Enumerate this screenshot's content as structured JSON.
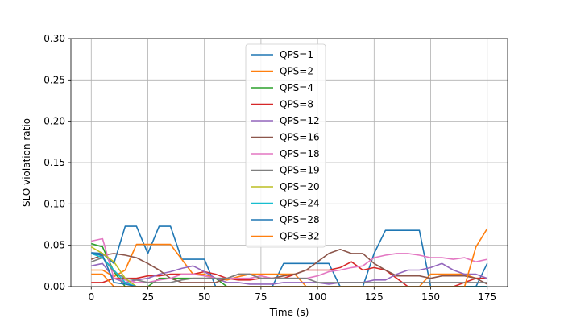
{
  "chart_data": {
    "type": "line",
    "title": "",
    "xlabel": "Time (s)",
    "ylabel": "SLO violation ratio",
    "xlim": [
      -9,
      184
    ],
    "ylim": [
      0,
      0.3
    ],
    "xticks": [
      0,
      25,
      50,
      75,
      100,
      125,
      150,
      175
    ],
    "yticks": [
      0.0,
      0.05,
      0.1,
      0.15,
      0.2,
      0.25,
      0.3
    ],
    "ytick_labels": [
      "0.00",
      "0.05",
      "0.10",
      "0.15",
      "0.20",
      "0.25",
      "0.30"
    ],
    "grid": true,
    "legend_position": "upper-center",
    "series": [
      {
        "name": "QPS=1",
        "color": "#1f77b4",
        "x": [
          0,
          5,
          10,
          15,
          20,
          25,
          30,
          35,
          40,
          45,
          50,
          55,
          60,
          65,
          70,
          75,
          80,
          85,
          90,
          95,
          100,
          105,
          110,
          115,
          120,
          125,
          130,
          135,
          140,
          145,
          150,
          155,
          160,
          165,
          170,
          175
        ],
        "y": [
          0.041,
          0.04,
          0.028,
          0.073,
          0.073,
          0.04,
          0.073,
          0.073,
          0.033,
          0.033,
          0.033,
          0,
          0,
          0,
          0,
          0,
          0,
          0.028,
          0.028,
          0.028,
          0.028,
          0.028,
          0,
          0,
          0,
          0.04,
          0.068,
          0.068,
          0.068,
          0.068,
          0,
          0,
          0,
          0,
          0,
          0.028
        ]
      },
      {
        "name": "QPS=2",
        "color": "#ff7f0e",
        "x": [
          0,
          5,
          10,
          15,
          20,
          25,
          30,
          35,
          40,
          45,
          50,
          55,
          60,
          65,
          70,
          75,
          80,
          85,
          90,
          95,
          100,
          105,
          110,
          115,
          120,
          125,
          130,
          135,
          140,
          145,
          150,
          155,
          160,
          165,
          170,
          175
        ],
        "y": [
          0.02,
          0.02,
          0.012,
          0.02,
          0.051,
          0.051,
          0.051,
          0.051,
          0.033,
          0.015,
          0.015,
          0.01,
          0.008,
          0.012,
          0.015,
          0.015,
          0.015,
          0.015,
          0.015,
          0,
          0,
          0,
          0,
          0,
          0,
          0,
          0,
          0,
          0,
          0,
          0.015,
          0.015,
          0.015,
          0.015,
          0.01,
          0.01
        ]
      },
      {
        "name": "QPS=4",
        "color": "#2ca02c",
        "x": [
          0,
          5,
          10,
          15,
          20,
          25,
          30,
          35,
          40,
          45,
          50,
          55,
          60,
          65,
          70,
          75,
          80,
          85,
          90,
          95,
          100,
          105,
          110,
          115,
          120,
          125,
          130,
          135,
          140,
          145,
          150,
          155,
          160,
          165,
          170,
          175
        ],
        "y": [
          0.052,
          0.048,
          0.018,
          0,
          0,
          0,
          0.01,
          0.01,
          0.01,
          0.01,
          0.01,
          0.01,
          0,
          0,
          0,
          0,
          0,
          0,
          0,
          0,
          0,
          0,
          0,
          0,
          0,
          0,
          0,
          0,
          0,
          0,
          0,
          0,
          0,
          0,
          0,
          0
        ]
      },
      {
        "name": "QPS=8",
        "color": "#d62728",
        "x": [
          0,
          5,
          10,
          15,
          20,
          25,
          30,
          35,
          40,
          45,
          50,
          55,
          60,
          65,
          70,
          75,
          80,
          85,
          90,
          95,
          100,
          105,
          110,
          115,
          120,
          125,
          130,
          135,
          140,
          145,
          150,
          155,
          160,
          165,
          170,
          175
        ],
        "y": [
          0.005,
          0.005,
          0.01,
          0.01,
          0.01,
          0.013,
          0.013,
          0.015,
          0.015,
          0.015,
          0.018,
          0.015,
          0.01,
          0.008,
          0.008,
          0.01,
          0.01,
          0.01,
          0.015,
          0.02,
          0.02,
          0.02,
          0.023,
          0.03,
          0.02,
          0.023,
          0.02,
          0.01,
          0,
          0,
          0,
          0,
          0,
          0.005,
          0.01,
          0.01
        ]
      },
      {
        "name": "QPS=12",
        "color": "#9467bd",
        "x": [
          0,
          5,
          10,
          15,
          20,
          25,
          30,
          35,
          40,
          45,
          50,
          55,
          60,
          65,
          70,
          75,
          80,
          85,
          90,
          95,
          100,
          105,
          110,
          115,
          120,
          125,
          130,
          135,
          140,
          145,
          150,
          155,
          160,
          165,
          170,
          175
        ],
        "y": [
          0.025,
          0.028,
          0.01,
          0.005,
          0.008,
          0.01,
          0.015,
          0.018,
          0.022,
          0.025,
          0.018,
          0.01,
          0.005,
          0.005,
          0.003,
          0.003,
          0.003,
          0.005,
          0.005,
          0.005,
          0.005,
          0.003,
          0.005,
          0.005,
          0.005,
          0.008,
          0.008,
          0.015,
          0.02,
          0.02,
          0.023,
          0.028,
          0.02,
          0.015,
          0.015,
          0.01
        ]
      },
      {
        "name": "QPS=16",
        "color": "#8c564b",
        "x": [
          0,
          5,
          10,
          15,
          20,
          25,
          30,
          35,
          40,
          45,
          50,
          55,
          60,
          65,
          70,
          75,
          80,
          85,
          90,
          95,
          100,
          105,
          110,
          115,
          120,
          125,
          130,
          135,
          140,
          145,
          150,
          155,
          160,
          165,
          170,
          175
        ],
        "y": [
          0.033,
          0.038,
          0.04,
          0.038,
          0.035,
          0.028,
          0.02,
          0.01,
          0.005,
          0.005,
          0.005,
          0.005,
          0.01,
          0.015,
          0.015,
          0.01,
          0.01,
          0.013,
          0.015,
          0.02,
          0.03,
          0.04,
          0.045,
          0.04,
          0.04,
          0.028,
          0.02,
          0.013,
          0.013,
          0.013,
          0.01,
          0.013,
          0.013,
          0.013,
          0.01,
          0.003
        ]
      },
      {
        "name": "QPS=18",
        "color": "#e377c2",
        "x": [
          0,
          5,
          10,
          15,
          20,
          25,
          30,
          35,
          40,
          45,
          50,
          55,
          60,
          65,
          70,
          75,
          80,
          85,
          90,
          95,
          100,
          105,
          110,
          115,
          120,
          125,
          130,
          135,
          140,
          145,
          150,
          155,
          160,
          165,
          170,
          175
        ],
        "y": [
          0.055,
          0.058,
          0.01,
          0.008,
          0.005,
          0.005,
          0.008,
          0.01,
          0.015,
          0.015,
          0.013,
          0.01,
          0.01,
          0.01,
          0.01,
          0.013,
          0.01,
          0.01,
          0.01,
          0.01,
          0.013,
          0.018,
          0.02,
          0.023,
          0.025,
          0.035,
          0.038,
          0.04,
          0.04,
          0.038,
          0.035,
          0.035,
          0.033,
          0.035,
          0.03,
          0.033
        ]
      },
      {
        "name": "QPS=19",
        "color": "#7f7f7f",
        "x": [
          0,
          5,
          10,
          15,
          20,
          25,
          30,
          35,
          40,
          45,
          50,
          55,
          60,
          65,
          70,
          75,
          80,
          85,
          90,
          95,
          100,
          105,
          110,
          115,
          120,
          125,
          130,
          135,
          140,
          145,
          150,
          155,
          160,
          165,
          170,
          175
        ],
        "y": [
          0.03,
          0.035,
          0.018,
          0.01,
          0.008,
          0.005,
          0.005,
          0.005,
          0.008,
          0.01,
          0.01,
          0.01,
          0.01,
          0.015,
          0.015,
          0.01,
          0.01,
          0.01,
          0.01,
          0.01,
          0.005,
          0.005,
          0.005,
          0.005,
          0.005,
          0.005,
          0.005,
          0.005,
          0.005,
          0.005,
          0.005,
          0.005,
          0.005,
          0.005,
          0.005,
          0.005
        ]
      },
      {
        "name": "QPS=20",
        "color": "#bcbd22",
        "x": [
          0,
          5,
          10,
          15,
          20,
          25,
          30,
          35,
          40,
          45,
          50,
          55,
          60,
          65,
          70,
          75,
          80,
          85,
          90,
          95,
          100,
          105,
          110,
          115,
          120,
          125,
          130,
          135,
          140,
          145,
          150,
          155,
          160,
          165,
          170,
          175
        ],
        "y": [
          0.048,
          0.04,
          0.03,
          0.01,
          0,
          0,
          0,
          0,
          0,
          0,
          0,
          0,
          0,
          0,
          0,
          0,
          0,
          0,
          0,
          0,
          0,
          0,
          0,
          0,
          0,
          0,
          0,
          0,
          0,
          0,
          0,
          0,
          0,
          0,
          0,
          0
        ]
      },
      {
        "name": "QPS=24",
        "color": "#17becf",
        "x": [
          0,
          5,
          10,
          15,
          20,
          25,
          30,
          35,
          40,
          45,
          50,
          55,
          60,
          65,
          70,
          75,
          80,
          85,
          90,
          95,
          100,
          105,
          110,
          115,
          120,
          125,
          130,
          135,
          140,
          145,
          150,
          155,
          160,
          165,
          170,
          175
        ],
        "y": [
          0.04,
          0.035,
          0.02,
          0.005,
          0,
          0,
          0,
          0,
          0,
          0,
          0,
          0,
          0,
          0,
          0,
          0,
          0,
          0,
          0,
          0,
          0,
          0,
          0,
          0,
          0,
          0,
          0,
          0,
          0,
          0,
          0,
          0,
          0,
          0,
          0,
          0
        ]
      },
      {
        "name": "QPS=28",
        "color": "#1f77b4",
        "x": [
          0,
          5,
          10,
          15,
          20,
          25,
          30,
          35,
          40,
          45,
          50,
          55,
          60,
          65,
          70,
          75,
          80,
          85,
          90,
          95,
          100,
          105,
          110,
          115,
          120,
          125,
          130,
          135,
          140,
          145,
          150,
          155,
          160,
          165,
          170,
          175
        ],
        "y": [
          0.04,
          0.038,
          0.005,
          0.003,
          0,
          0,
          0,
          0,
          0,
          0,
          0,
          0,
          0,
          0,
          0,
          0,
          0,
          0,
          0,
          0,
          0,
          0,
          0,
          0,
          0,
          0,
          0,
          0,
          0,
          0,
          0,
          0,
          0,
          0,
          0,
          0
        ]
      },
      {
        "name": "QPS=32",
        "color": "#ff7f0e",
        "x": [
          0,
          5,
          10,
          15,
          20,
          25,
          30,
          35,
          40,
          45,
          50,
          55,
          60,
          65,
          70,
          75,
          80,
          85,
          90,
          95,
          100,
          105,
          110,
          115,
          120,
          125,
          130,
          135,
          140,
          145,
          150,
          155,
          160,
          165,
          170,
          175
        ],
        "y": [
          0.015,
          0.015,
          0,
          0,
          0,
          0,
          0,
          0,
          0,
          0,
          0,
          0,
          0,
          0,
          0,
          0,
          0,
          0,
          0,
          0,
          0,
          0,
          0,
          0,
          0,
          0,
          0,
          0,
          0,
          0,
          0,
          0,
          0,
          0,
          0.048,
          0.07
        ]
      }
    ]
  }
}
